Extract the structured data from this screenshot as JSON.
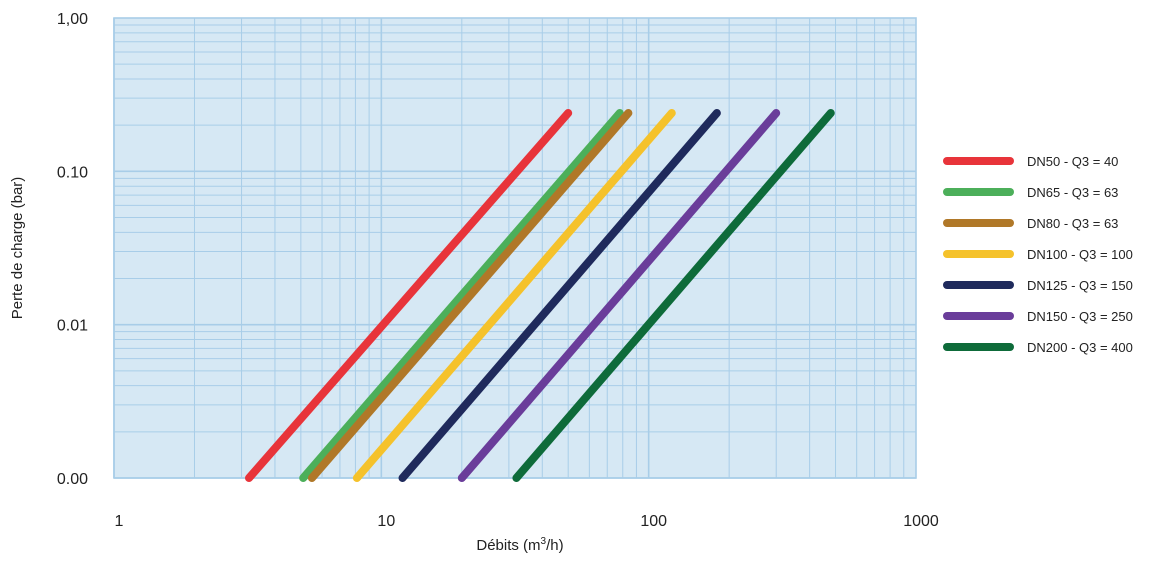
{
  "chart_data": {
    "type": "line",
    "xscale": "log",
    "yscale": "log",
    "xlim": [
      1,
      1000
    ],
    "ylim": [
      0.001,
      1
    ],
    "grid": true,
    "background": "#d6e8f4",
    "grid_color": "#a8cde8",
    "legend_position": "right",
    "xlabel_base": "Débits (m",
    "xlabel_sup": "3",
    "xlabel_end": "/h)",
    "ylabel": "Perte de charge (bar)",
    "x_tick_values": [
      1,
      10,
      100,
      1000
    ],
    "x_tick_labels": [
      "1",
      "10",
      "100",
      "1000"
    ],
    "y_tick_values": [
      0.001,
      0.01,
      0.1,
      1
    ],
    "y_tick_labels": [
      "0.00",
      "0.01",
      "0.10",
      "1,00"
    ],
    "series": [
      {
        "name": "DN50 - Q3 = 40",
        "color": "#e8343a",
        "x": [
          3.2,
          50
        ],
        "y": [
          0.001,
          0.24
        ]
      },
      {
        "name": "DN65 - Q3 = 63",
        "color": "#4caf5a",
        "x": [
          5.1,
          78
        ],
        "y": [
          0.001,
          0.24
        ]
      },
      {
        "name": "DN80 - Q3 = 63",
        "color": "#b07828",
        "x": [
          5.5,
          84
        ],
        "y": [
          0.001,
          0.24
        ]
      },
      {
        "name": "DN100 - Q3 = 100",
        "color": "#f5c22b",
        "x": [
          8.1,
          122
        ],
        "y": [
          0.001,
          0.24
        ]
      },
      {
        "name": "DN125 - Q3 = 150",
        "color": "#1f2a5c",
        "x": [
          12,
          180
        ],
        "y": [
          0.001,
          0.24
        ]
      },
      {
        "name": "DN150 - Q3 = 250",
        "color": "#6a3d9a",
        "x": [
          20,
          300
        ],
        "y": [
          0.001,
          0.24
        ]
      },
      {
        "name": "DN200 - Q3 = 400",
        "color": "#0e6b3a",
        "x": [
          32,
          480
        ],
        "y": [
          0.001,
          0.24
        ]
      }
    ]
  }
}
